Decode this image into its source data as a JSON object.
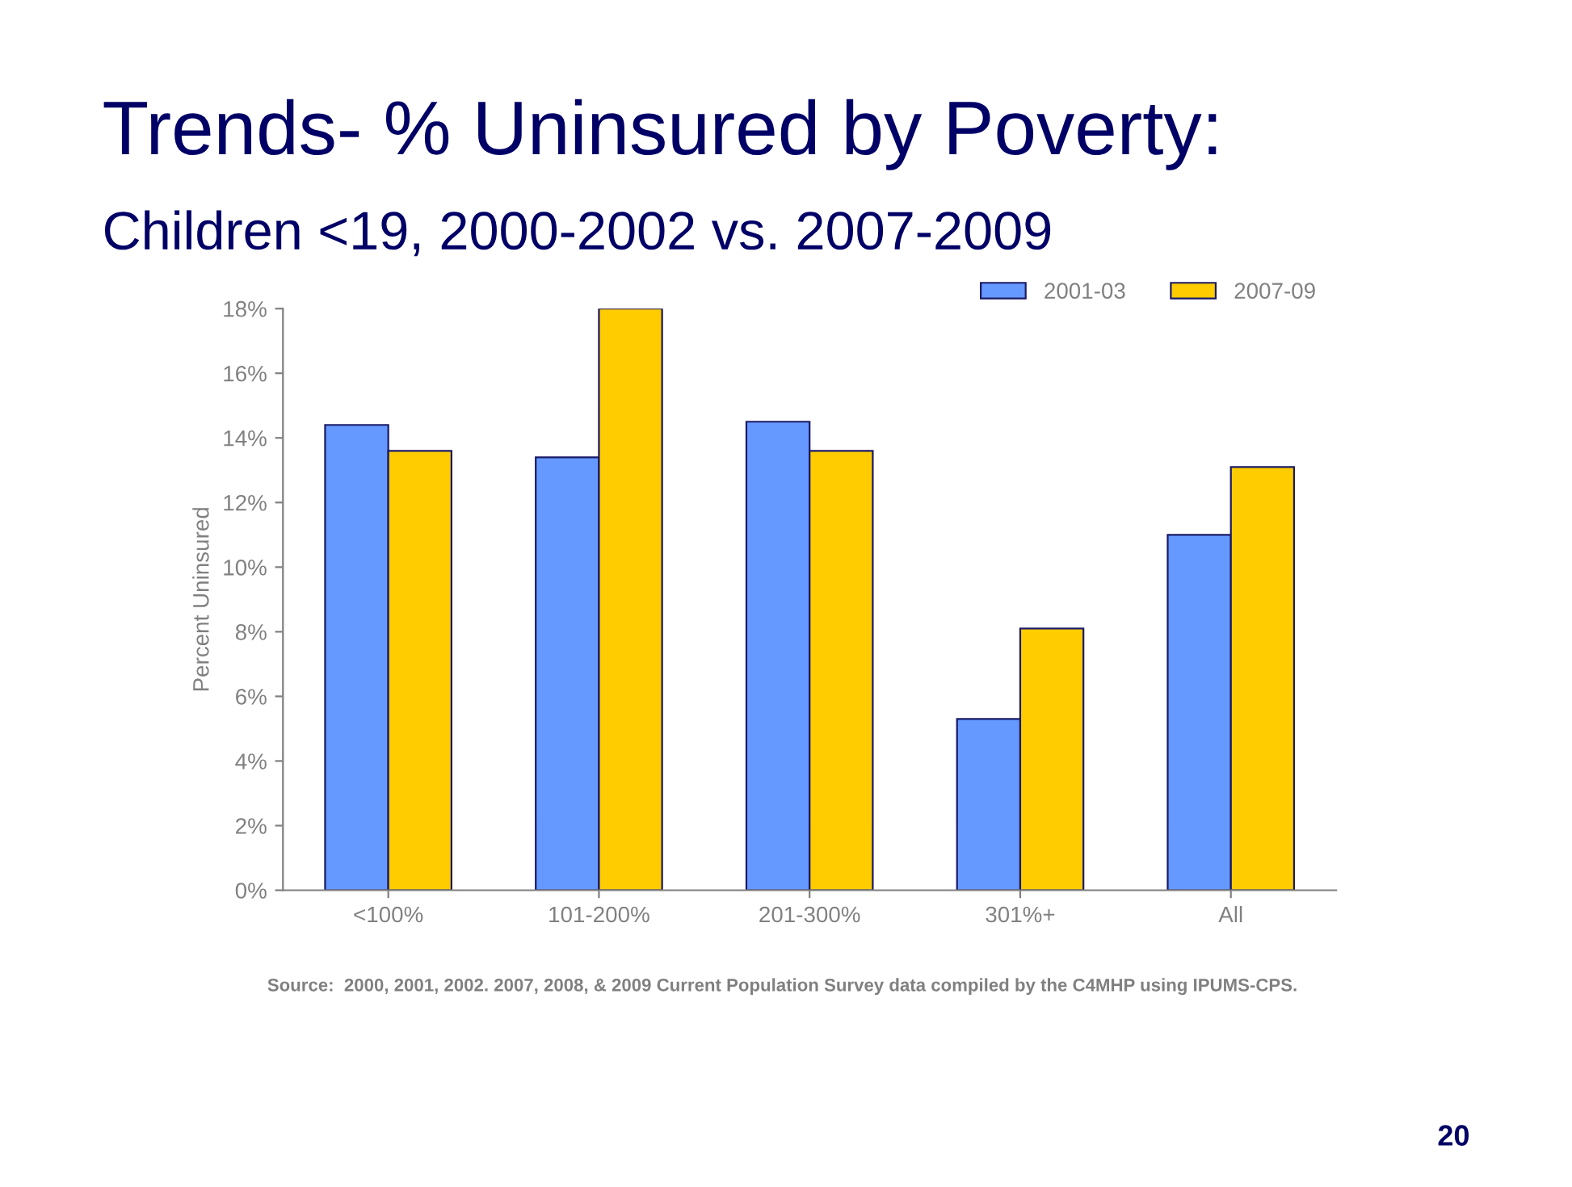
{
  "chart_data": {
    "type": "bar",
    "title": "Trends- % Uninsured by Poverty:",
    "subtitle": "Children <19, 2000-2002 vs. 2007-2009",
    "ylabel": "Percent Uninsured",
    "categories": [
      "<100%",
      "101-200%",
      "201-300%",
      "301%+",
      "All"
    ],
    "series": [
      {
        "name": "2001-03",
        "color": "#6699ff",
        "values": [
          14.4,
          13.4,
          14.5,
          5.3,
          11.0
        ]
      },
      {
        "name": "2007-09",
        "color": "#ffcc00",
        "values": [
          13.6,
          18.0,
          13.6,
          8.1,
          13.1
        ]
      }
    ],
    "ylim": [
      0,
      18
    ],
    "yticks": [
      {
        "value": 0,
        "label": "0%"
      },
      {
        "value": 2,
        "label": "2%"
      },
      {
        "value": 4,
        "label": "4%"
      },
      {
        "value": 6,
        "label": "6%"
      },
      {
        "value": 8,
        "label": "8%"
      },
      {
        "value": 10,
        "label": "10%"
      },
      {
        "value": 12,
        "label": "12%"
      },
      {
        "value": 14,
        "label": "14%"
      },
      {
        "value": 16,
        "label": "16%"
      },
      {
        "value": 18,
        "label": "18%"
      }
    ],
    "grid": false,
    "legend": "top right",
    "annotations": [
      "Source:  2000, 2001, 2002. 2007, 2008, & 2009 Current Population Survey data compiled by the C4MHP using IPUMS-CPS.",
      "20"
    ]
  }
}
